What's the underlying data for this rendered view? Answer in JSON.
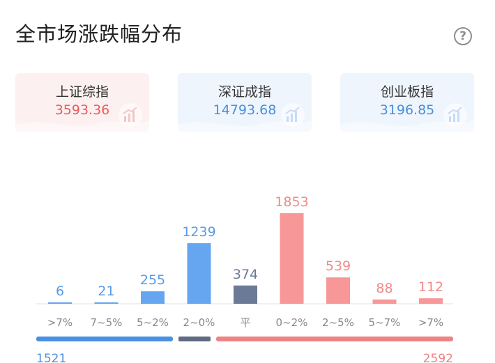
{
  "page": {
    "title": "全市场涨跌幅分布",
    "help_icon": "help-circle-icon",
    "help_glyph": "?"
  },
  "indices": [
    {
      "name": "上证综指",
      "value": "3593.36",
      "color": "#e85c5c",
      "bg": "#fdf0f0"
    },
    {
      "name": "深证成指",
      "value": "14793.68",
      "color": "#4a8fd8",
      "bg": "#eef5fd"
    },
    {
      "name": "创业板指",
      "value": "3196.85",
      "color": "#4a8fd8",
      "bg": "#eef5fd"
    }
  ],
  "chart_data": {
    "type": "bar",
    "categories": [
      ">7%",
      "7~5%",
      "5~2%",
      "2~0%",
      "平",
      "0~2%",
      "2~5%",
      "5~7%",
      ">7%"
    ],
    "values": [
      6,
      21,
      255,
      1239,
      374,
      1853,
      539,
      88,
      112
    ],
    "ylim": [
      0,
      1853
    ],
    "grid": false,
    "colors": {
      "down": "#66a6f0",
      "flat": "#6b7a96",
      "up": "#f79797",
      "label_down": "#5a9be6",
      "label_flat": "#6b7a96",
      "label_up": "#f08a8a",
      "category": "#888888",
      "axis": "#e0e0e0",
      "summary_down": "#4a90e2",
      "summary_flat": "#5f6b82",
      "summary_up": "#ee8383"
    },
    "summary": {
      "down_total": "1521",
      "up_total": "2592"
    }
  }
}
